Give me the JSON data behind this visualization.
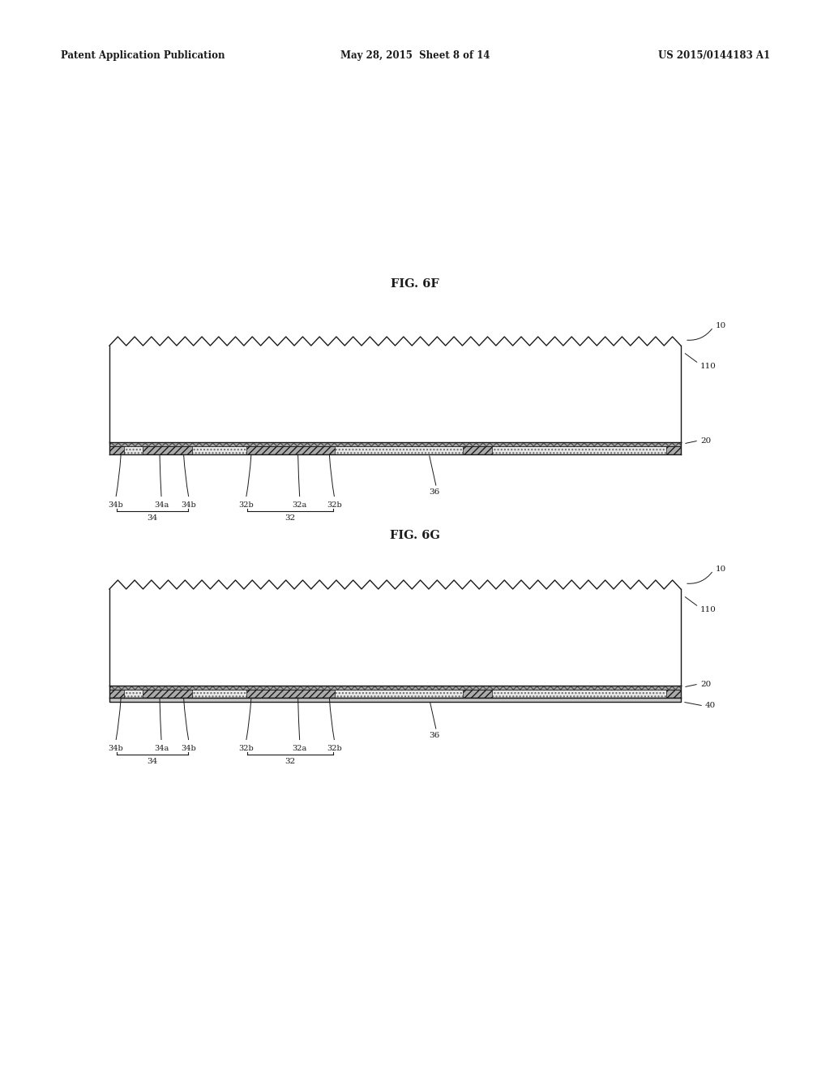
{
  "bg_color": "#ffffff",
  "header_left": "Patent Application Publication",
  "header_center": "May 28, 2015  Sheet 8 of 14",
  "header_right": "US 2015/0144183 A1",
  "fig6f_label": "FIG. 6F",
  "fig6g_label": "FIG. 6G",
  "line_color": "#1a1a1a",
  "label_fontsize": 7.5,
  "fig_label_fontsize": 10.5,
  "header_fontsize": 8.5
}
